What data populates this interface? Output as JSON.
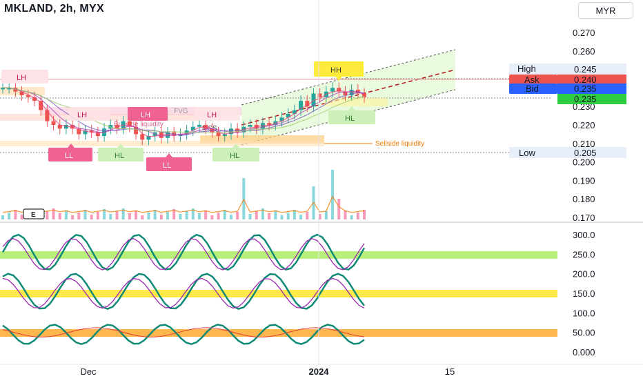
{
  "header": {
    "title": "MKLAND, 2h, MYX",
    "currency": "MYR"
  },
  "colors": {
    "green_candle": "#26a69a",
    "red_candle": "#ef5350",
    "teal_line": "#0e8a76",
    "purple_line": "#9c27b0",
    "green_band": "#b8f07a",
    "yellow_band": "#ffe94a",
    "orange_band": "#ffb74d",
    "channel_fill": "#d7f5c3",
    "dashed_mid": "#b71c1c"
  },
  "price_labels": {
    "high_label": "High",
    "high_value": "0.245",
    "ask_label": "Ask",
    "ask_value": "0.240",
    "bid_label": "Bid",
    "bid_value": "0.235",
    "last_value": "0.235",
    "low_label": "Low",
    "low_value": "0.205"
  },
  "annotations": {
    "lh": "LH",
    "ll": "LL",
    "hl": "HL",
    "hh": "HH",
    "sellside": "Sellside liquidity",
    "buyside": "Buyside liquidity",
    "mss": "MSS",
    "fvg": "FVG",
    "earnings": "E"
  },
  "chart_data": [
    {
      "type": "line",
      "title": "MKLAND, 2h, MYX",
      "x_tick_labels": [
        "Dec",
        "2024",
        "15"
      ],
      "y_ticks": [
        0.27,
        0.26,
        0.25,
        0.24,
        0.23,
        0.22,
        0.21,
        0.2,
        0.19,
        0.18,
        0.17
      ],
      "y_tick_labels": [
        "0.270",
        "0.260",
        "0.250",
        "0.240",
        "0.230",
        "0.220",
        "0.210",
        "0.200",
        "0.190",
        "0.180",
        "0.170"
      ],
      "ylim": [
        0.167,
        0.278
      ],
      "series": [
        {
          "values": [
            0.24,
            0.24,
            0.238,
            0.236,
            0.235,
            0.233,
            0.228,
            0.222,
            0.22,
            0.218,
            0.22,
            0.218,
            0.215,
            0.217,
            0.216,
            0.214,
            0.218,
            0.22,
            0.218,
            0.222,
            0.219,
            0.215,
            0.212,
            0.214,
            0.216,
            0.213,
            0.216,
            0.214,
            0.215,
            0.217,
            0.219,
            0.22,
            0.218,
            0.216,
            0.214,
            0.215,
            0.218,
            0.216,
            0.219,
            0.22,
            0.218,
            0.221,
            0.22,
            0.222,
            0.224,
            0.226,
            0.228,
            0.233,
            0.23,
            0.237,
            0.235,
            0.238,
            0.24,
            0.238,
            0.236,
            0.239,
            0.237,
            0.235
          ]
        }
      ],
      "grid": true
    },
    {
      "type": "line",
      "y_ticks": [
        300,
        250,
        200,
        150,
        100,
        50,
        0
      ],
      "y_tick_labels": [
        "300.0",
        "250.0",
        "200.0",
        "150.0",
        "100.0",
        "50.00",
        "0.000"
      ],
      "ylim": [
        -10,
        310
      ],
      "bands": [
        {
          "from": 245,
          "to": 265,
          "color": "green"
        },
        {
          "from": 140,
          "to": 160,
          "color": "yellow"
        },
        {
          "from": 40,
          "to": 60,
          "color": "orange"
        }
      ]
    }
  ]
}
